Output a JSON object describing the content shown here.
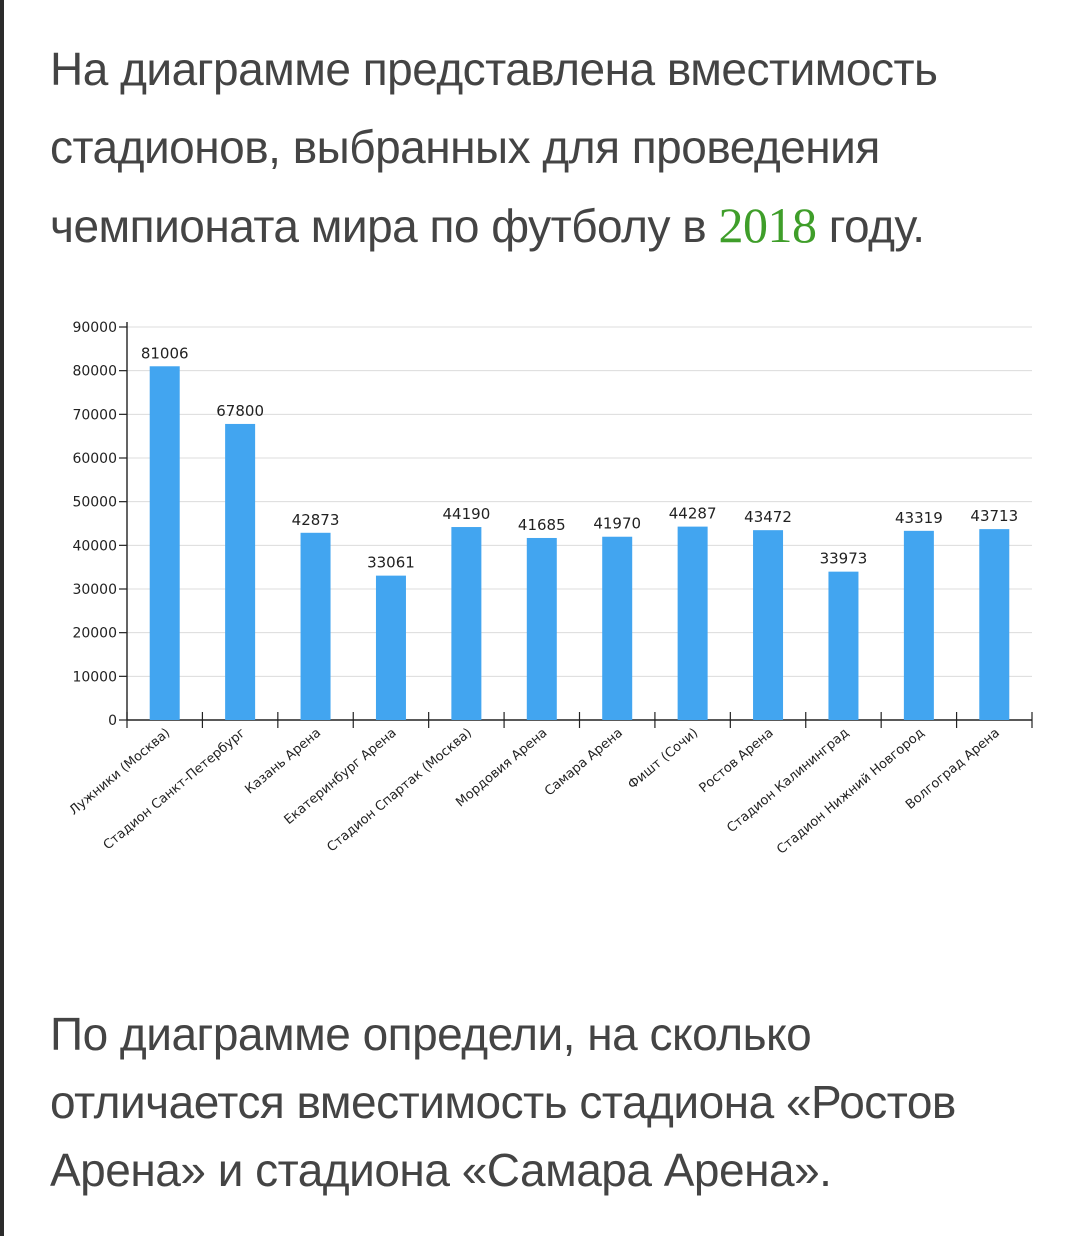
{
  "intro": {
    "line1": "На диаграмме представлена вместимость",
    "line2": "стадионов, выбранных для проведения",
    "line3_before": "чемпионата мира по футболу в ",
    "year": "2018",
    "line3_after": " году."
  },
  "question": {
    "line1": "По диаграмме определи, на сколько",
    "line2": "отличается вместимость стадиона «Ростов",
    "line3": "Арена» и стадиона «Самара Арена»."
  },
  "colors": {
    "bar": "#42a5f0",
    "year": "#3f9e2a",
    "text": "#444444"
  },
  "chart_data": {
    "type": "bar",
    "title": "",
    "xlabel": "",
    "ylabel": "",
    "ylim": [
      0,
      90000
    ],
    "yticks": [
      0,
      10000,
      20000,
      30000,
      40000,
      50000,
      60000,
      70000,
      80000,
      90000
    ],
    "grid": true,
    "categories": [
      "Лужники (Москва)",
      "Стадион Санкт-Петербург",
      "Казань Арена",
      "Екатеринбург Арена",
      "Стадион Спартак (Москва)",
      "Мордовия Арена",
      "Самара Арена",
      "Фишт (Сочи)",
      "Ростов Арена",
      "Стадион Калининград",
      "Стадион Нижний Новгород",
      "Волгоград Арена"
    ],
    "values": [
      81006,
      67800,
      42873,
      33061,
      44190,
      41685,
      41970,
      44287,
      43472,
      33973,
      43319,
      43713
    ]
  }
}
